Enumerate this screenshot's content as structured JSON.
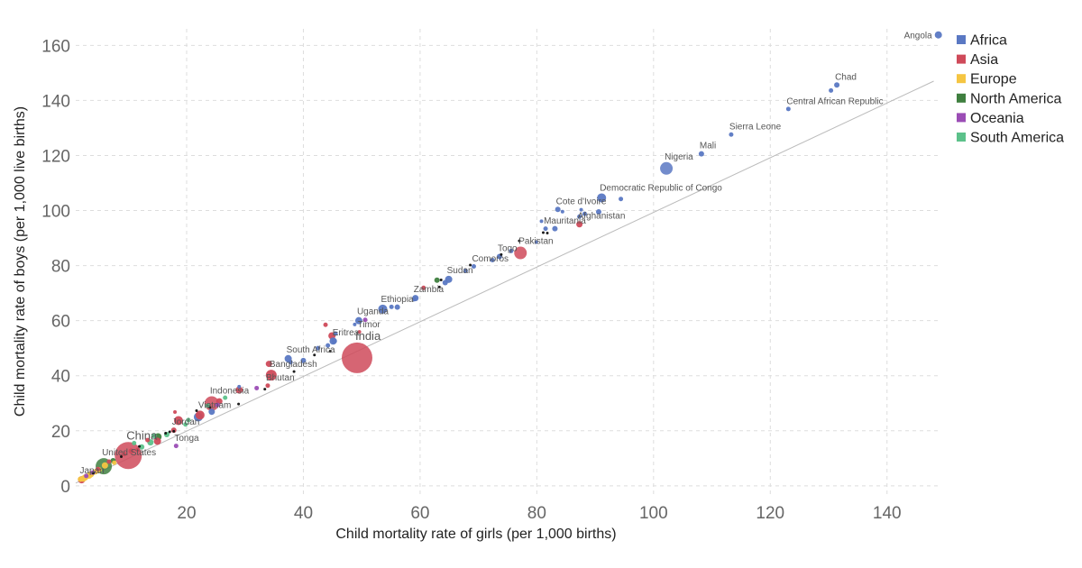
{
  "chart_data": {
    "type": "scatter",
    "title": "",
    "xlabel": "Child mortality rate of girls (per 1,000 births)",
    "ylabel": "Child mortality rate of boys (per 1,000 live births)",
    "xlim": [
      1,
      149
    ],
    "ylim": [
      -3,
      166
    ],
    "xticks": [
      "20",
      "40",
      "60",
      "80",
      "100",
      "120",
      "140"
    ],
    "yticks": [
      "0",
      "20",
      "40",
      "60",
      "80",
      "100",
      "120",
      "140",
      "160"
    ],
    "grid": true,
    "legend_position": "top-right",
    "reference_line": {
      "x": [
        1,
        148
      ],
      "y": [
        1,
        147
      ]
    },
    "legend": [
      {
        "name": "Africa",
        "color": "#5a78c3"
      },
      {
        "name": "Asia",
        "color": "#cf4a5a"
      },
      {
        "name": "Europe",
        "color": "#f5c542"
      },
      {
        "name": "North America",
        "color": "#3f7f3f"
      },
      {
        "name": "Oceania",
        "color": "#9b4db5"
      },
      {
        "name": "South America",
        "color": "#5cc18a"
      }
    ],
    "labeled_points": [
      {
        "label": "Angola",
        "x": 148.8,
        "y": 163.8,
        "region": "Africa",
        "size": 4,
        "label_side": "left"
      },
      {
        "label": "Chad",
        "x": 131.4,
        "y": 145.6,
        "region": "Africa",
        "size": 3
      },
      {
        "label": "Central African Republic",
        "x": 123.1,
        "y": 136.9,
        "region": "Africa",
        "size": 2.5
      },
      {
        "label": "Sierra Leone",
        "x": 113.3,
        "y": 127.6,
        "region": "Africa",
        "size": 2.5
      },
      {
        "label": "Mali",
        "x": 108.2,
        "y": 120.6,
        "region": "Africa",
        "size": 3
      },
      {
        "label": "Nigeria",
        "x": 102.2,
        "y": 115.3,
        "region": "Africa",
        "size": 7
      },
      {
        "label": "Democratic Republic of Congo",
        "x": 91.1,
        "y": 104.6,
        "region": "Africa",
        "size": 5
      },
      {
        "label": "Cote d'Ivoire",
        "x": 83.6,
        "y": 100.4,
        "region": "Africa",
        "size": 3
      },
      {
        "label": "Mauritania",
        "x": 81.5,
        "y": 93.4,
        "region": "Africa",
        "size": 2.5
      },
      {
        "label": "Afghanistan",
        "x": 87.3,
        "y": 95.0,
        "region": "Asia",
        "size": 3.5
      },
      {
        "label": "Pakistan",
        "x": 77.2,
        "y": 84.6,
        "region": "Asia",
        "size": 7
      },
      {
        "label": "Togo",
        "x": 73.6,
        "y": 83.3,
        "region": "Africa",
        "size": 3
      },
      {
        "label": "Comoros",
        "x": 69.2,
        "y": 79.7,
        "region": "Africa",
        "size": 2.5
      },
      {
        "label": "Sudan",
        "x": 64.9,
        "y": 75.0,
        "region": "Africa",
        "size": 4
      },
      {
        "label": "Zambia",
        "x": 59.2,
        "y": 68.2,
        "region": "Africa",
        "size": 3.5
      },
      {
        "label": "Ethiopia",
        "x": 53.6,
        "y": 64.2,
        "region": "Africa",
        "size": 5
      },
      {
        "label": "Uganda",
        "x": 49.5,
        "y": 60.0,
        "region": "Africa",
        "size": 4
      },
      {
        "label": "Timor",
        "x": 49.6,
        "y": 55.9,
        "region": "Asia",
        "size": 2
      },
      {
        "label": "Eritrea",
        "x": 45.3,
        "y": 52.6,
        "region": "Africa",
        "size": 3
      },
      {
        "label": "India",
        "x": 49.2,
        "y": 46.5,
        "region": "Asia",
        "size": 17,
        "big": true
      },
      {
        "label": "South Africa",
        "x": 37.4,
        "y": 46.2,
        "region": "Africa",
        "size": 4
      },
      {
        "label": "Bangladesh",
        "x": 34.5,
        "y": 40.2,
        "region": "Asia",
        "size": 6
      },
      {
        "label": "Bhutan",
        "x": 33.9,
        "y": 36.4,
        "region": "Asia",
        "size": 2.5
      },
      {
        "label": "Indonesia",
        "x": 24.3,
        "y": 29.9,
        "region": "Asia",
        "size": 8
      },
      {
        "label": "Vietnam",
        "x": 22.3,
        "y": 25.7,
        "region": "Asia",
        "size": 5
      },
      {
        "label": "Jordan",
        "x": 17.8,
        "y": 20.2,
        "region": "Asia",
        "size": 3
      },
      {
        "label": "China",
        "x": 10.0,
        "y": 11.0,
        "region": "Asia",
        "size": 15,
        "big": true
      },
      {
        "label": "Tonga",
        "x": 18.2,
        "y": 14.5,
        "region": "Oceania",
        "size": 2.5
      },
      {
        "label": "United States",
        "x": 5.8,
        "y": 7.1,
        "region": "North America",
        "size": 9
      },
      {
        "label": "Japan",
        "x": 2.0,
        "y": 2.2,
        "region": "Asia",
        "size": 4
      }
    ],
    "other_points": [
      {
        "x": 130.4,
        "y": 143.6,
        "region": "Africa",
        "size": 2.5
      },
      {
        "x": 94.4,
        "y": 104.2,
        "region": "Africa",
        "size": 2.5
      },
      {
        "x": 90.6,
        "y": 99.5,
        "region": "Africa",
        "size": 3
      },
      {
        "x": 88.2,
        "y": 98.8,
        "region": "Africa",
        "size": 2.5
      },
      {
        "x": 87.3,
        "y": 97.8,
        "region": "Africa",
        "size": 2.5
      },
      {
        "x": 87.6,
        "y": 100.3,
        "region": "Africa",
        "size": 2
      },
      {
        "x": 84.4,
        "y": 99.6,
        "region": "Africa",
        "size": 2
      },
      {
        "x": 83.1,
        "y": 93.4,
        "region": "Africa",
        "size": 3
      },
      {
        "x": 81.1,
        "y": 92.0,
        "region": "none",
        "size": 1.5
      },
      {
        "x": 81.8,
        "y": 91.8,
        "region": "none",
        "size": 1.5
      },
      {
        "x": 80.8,
        "y": 96.1,
        "region": "Africa",
        "size": 2
      },
      {
        "x": 79.9,
        "y": 88.5,
        "region": "Africa",
        "size": 2
      },
      {
        "x": 77.0,
        "y": 89.0,
        "region": "none",
        "size": 1.5
      },
      {
        "x": 75.6,
        "y": 85.3,
        "region": "Africa",
        "size": 2.5
      },
      {
        "x": 73.9,
        "y": 84.0,
        "region": "none",
        "size": 1.5
      },
      {
        "x": 72.4,
        "y": 82.0,
        "region": "Africa",
        "size": 2.5
      },
      {
        "x": 68.6,
        "y": 80.2,
        "region": "none",
        "size": 1.5
      },
      {
        "x": 67.8,
        "y": 78.1,
        "region": "Africa",
        "size": 2.5
      },
      {
        "x": 64.3,
        "y": 73.8,
        "region": "Africa",
        "size": 3
      },
      {
        "x": 63.6,
        "y": 74.8,
        "region": "none",
        "size": 1.5
      },
      {
        "x": 62.9,
        "y": 74.7,
        "region": "North America",
        "size": 3
      },
      {
        "x": 63.3,
        "y": 72.2,
        "region": "none",
        "size": 1.5
      },
      {
        "x": 60.6,
        "y": 71.9,
        "region": "Asia",
        "size": 2.5
      },
      {
        "x": 59.0,
        "y": 67.8,
        "region": "Africa",
        "size": 2.5
      },
      {
        "x": 56.1,
        "y": 64.9,
        "region": "Africa",
        "size": 3
      },
      {
        "x": 55.1,
        "y": 65.0,
        "region": "Africa",
        "size": 2.5
      },
      {
        "x": 50.6,
        "y": 60.3,
        "region": "Oceania",
        "size": 2.5
      },
      {
        "x": 48.8,
        "y": 58.6,
        "region": "Africa",
        "size": 2
      },
      {
        "x": 45.5,
        "y": 55.3,
        "region": "Africa",
        "size": 2.5
      },
      {
        "x": 43.8,
        "y": 58.5,
        "region": "Asia",
        "size": 2.5
      },
      {
        "x": 44.9,
        "y": 54.5,
        "region": "Asia",
        "size": 4
      },
      {
        "x": 45.1,
        "y": 52.6,
        "region": "Africa",
        "size": 4
      },
      {
        "x": 44.2,
        "y": 51.0,
        "region": "Africa",
        "size": 2.5
      },
      {
        "x": 44.6,
        "y": 48.9,
        "region": "none",
        "size": 1.5
      },
      {
        "x": 42.5,
        "y": 50.0,
        "region": "Africa",
        "size": 2.5
      },
      {
        "x": 41.9,
        "y": 47.5,
        "region": "none",
        "size": 1.5
      },
      {
        "x": 40.0,
        "y": 45.5,
        "region": "Africa",
        "size": 3
      },
      {
        "x": 38.4,
        "y": 41.5,
        "region": "none",
        "size": 1.5
      },
      {
        "x": 37.8,
        "y": 44.9,
        "region": "Africa",
        "size": 2.5
      },
      {
        "x": 34.1,
        "y": 44.3,
        "region": "Asia",
        "size": 3.5
      },
      {
        "x": 33.4,
        "y": 35.1,
        "region": "none",
        "size": 1.5
      },
      {
        "x": 32.0,
        "y": 35.5,
        "region": "Oceania",
        "size": 2.5
      },
      {
        "x": 29.0,
        "y": 34.8,
        "region": "Asia",
        "size": 4
      },
      {
        "x": 29.0,
        "y": 36.0,
        "region": "Africa",
        "size": 2
      },
      {
        "x": 28.9,
        "y": 29.7,
        "region": "none",
        "size": 1.5
      },
      {
        "x": 26.6,
        "y": 32.0,
        "region": "South America",
        "size": 2.5
      },
      {
        "x": 25.6,
        "y": 30.7,
        "region": "Asia",
        "size": 3.5
      },
      {
        "x": 25.3,
        "y": 29.4,
        "region": "Oceania",
        "size": 2.5
      },
      {
        "x": 24.0,
        "y": 28.5,
        "region": "none",
        "size": 1.5
      },
      {
        "x": 24.3,
        "y": 26.9,
        "region": "Africa",
        "size": 3.5
      },
      {
        "x": 23.6,
        "y": 29.1,
        "region": "South America",
        "size": 2.5
      },
      {
        "x": 22.0,
        "y": 25.0,
        "region": "Africa",
        "size": 5
      },
      {
        "x": 21.7,
        "y": 27.3,
        "region": "none",
        "size": 1.5
      },
      {
        "x": 20.3,
        "y": 23.9,
        "region": "South America",
        "size": 2.5
      },
      {
        "x": 19.8,
        "y": 22.3,
        "region": "South America",
        "size": 2.5
      },
      {
        "x": 18.6,
        "y": 23.7,
        "region": "Asia",
        "size": 5
      },
      {
        "x": 18.0,
        "y": 26.8,
        "region": "Asia",
        "size": 2
      },
      {
        "x": 17.8,
        "y": 19.8,
        "region": "none",
        "size": 1.5
      },
      {
        "x": 17.1,
        "y": 19.6,
        "region": "none",
        "size": 1.5
      },
      {
        "x": 16.4,
        "y": 19.1,
        "region": "none",
        "size": 1.5
      },
      {
        "x": 16.6,
        "y": 18.6,
        "region": "South America",
        "size": 3
      },
      {
        "x": 15.1,
        "y": 17.8,
        "region": "North America",
        "size": 4
      },
      {
        "x": 15.0,
        "y": 16.2,
        "region": "Asia",
        "size": 4
      },
      {
        "x": 14.4,
        "y": 18.2,
        "region": "South America",
        "size": 3
      },
      {
        "x": 13.8,
        "y": 15.8,
        "region": "South America",
        "size": 3.5
      },
      {
        "x": 13.3,
        "y": 16.6,
        "region": "Asia",
        "size": 2.5
      },
      {
        "x": 12.3,
        "y": 14.1,
        "region": "South America",
        "size": 3
      },
      {
        "x": 11.9,
        "y": 14.3,
        "region": "none",
        "size": 1.5
      },
      {
        "x": 11.6,
        "y": 13.0,
        "region": "Asia",
        "size": 2.5
      },
      {
        "x": 11.0,
        "y": 15.5,
        "region": "South America",
        "size": 2.5
      },
      {
        "x": 10.5,
        "y": 12.6,
        "region": "Asia",
        "size": 3
      },
      {
        "x": 9.3,
        "y": 11.5,
        "region": "Asia",
        "size": 2.5
      },
      {
        "x": 8.8,
        "y": 10.6,
        "region": "none",
        "size": 1.5
      },
      {
        "x": 7.4,
        "y": 9.1,
        "region": "North America",
        "size": 3
      },
      {
        "x": 7.6,
        "y": 8.4,
        "region": "Europe",
        "size": 2.5
      },
      {
        "x": 6.7,
        "y": 8.8,
        "region": "Asia",
        "size": 2.5
      },
      {
        "x": 6.0,
        "y": 7.4,
        "region": "Europe",
        "size": 3.5
      },
      {
        "x": 5.0,
        "y": 5.8,
        "region": "Europe",
        "size": 3
      },
      {
        "x": 4.8,
        "y": 6.1,
        "region": "Asia",
        "size": 2.5
      },
      {
        "x": 4.4,
        "y": 5.1,
        "region": "Europe",
        "size": 3
      },
      {
        "x": 4.0,
        "y": 4.6,
        "region": "none",
        "size": 1.5
      },
      {
        "x": 3.6,
        "y": 4.2,
        "region": "Europe",
        "size": 3.5
      },
      {
        "x": 3.3,
        "y": 3.7,
        "region": "Europe",
        "size": 3.5
      },
      {
        "x": 2.9,
        "y": 3.4,
        "region": "Europe",
        "size": 3
      },
      {
        "x": 2.6,
        "y": 3.0,
        "region": "Europe",
        "size": 3.5
      },
      {
        "x": 2.3,
        "y": 2.6,
        "region": "Europe",
        "size": 3.5
      },
      {
        "x": 2.8,
        "y": 3.6,
        "region": "Oceania",
        "size": 2.5
      },
      {
        "x": 3.9,
        "y": 4.8,
        "region": "Oceania",
        "size": 2.5
      },
      {
        "x": 1.8,
        "y": 2.4,
        "region": "Europe",
        "size": 3
      }
    ]
  }
}
